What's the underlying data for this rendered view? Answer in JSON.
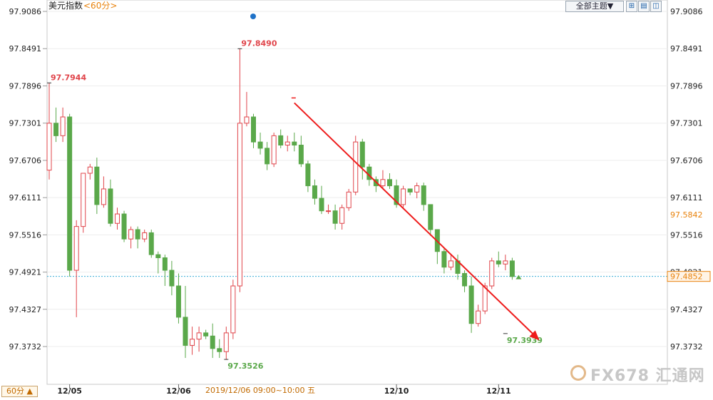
{
  "header": {
    "title": "美元指数",
    "period_tag": "<60分>",
    "theme_select": "全部主题▼"
  },
  "toolbar": {
    "icons": [
      "grid-icon",
      "chart-icon",
      "crosshair-icon",
      "toggle-icon"
    ]
  },
  "footer": {
    "period_button": "60分 ▲",
    "crosshair_label": "2019/12/06 09:00~10:00 五"
  },
  "watermark": "FX678 汇通网",
  "colors": {
    "up": "#e0444a",
    "down": "#5aa84a",
    "ref_line": "#3aaed8",
    "current_price": "#e8820c",
    "arrow": "#ee1c1c"
  },
  "chart_data": {
    "type": "candlestick",
    "title": "美元指数",
    "yaxis": {
      "ticks": [
        "97.9086",
        "97.8491",
        "97.7896",
        "97.7301",
        "97.6706",
        "97.6111",
        "97.5516",
        "97.4921",
        "97.4327",
        "97.3732"
      ],
      "range": [
        97.34,
        97.9086
      ]
    },
    "xaxis": {
      "ticks": [
        {
          "label": "12/05",
          "index": 3
        },
        {
          "label": "12/06",
          "index": 19
        },
        {
          "label": "12/10",
          "index": 51
        },
        {
          "label": "12/11",
          "index": 66
        }
      ]
    },
    "right_labels": {
      "upper": "97.5842",
      "current": "97.4852"
    },
    "reference_line": 97.4852,
    "annotations": [
      {
        "text": "97.7944",
        "index": 0,
        "value": 97.7944,
        "kind": "high"
      },
      {
        "text": "97.8490",
        "index": 28,
        "value": 97.849,
        "kind": "high"
      },
      {
        "text": "97.3526",
        "index": 26,
        "value": 97.3526,
        "kind": "low"
      },
      {
        "text": "97.3939",
        "index": 67,
        "value": 97.3939,
        "kind": "low"
      }
    ],
    "trend_arrow": {
      "from": [
        36,
        97.7624
      ],
      "to": [
        72,
        97.383
      ]
    },
    "candles": [
      [
        97.655,
        97.73,
        97.64,
        97.794
      ],
      [
        97.73,
        97.71,
        97.7,
        97.755
      ],
      [
        97.71,
        97.74,
        97.7,
        97.755
      ],
      [
        97.74,
        97.495,
        97.485,
        97.745
      ],
      [
        97.495,
        97.565,
        97.42,
        97.575
      ],
      [
        97.565,
        97.65,
        97.555,
        97.65
      ],
      [
        97.65,
        97.66,
        97.64,
        97.665
      ],
      [
        97.66,
        97.6,
        97.585,
        97.675
      ],
      [
        97.6,
        97.625,
        97.595,
        97.645
      ],
      [
        97.625,
        97.57,
        97.565,
        97.64
      ],
      [
        97.57,
        97.585,
        97.56,
        97.595
      ],
      [
        97.585,
        97.545,
        97.54,
        97.59
      ],
      [
        97.545,
        97.56,
        97.53,
        97.565
      ],
      [
        97.56,
        97.545,
        97.53,
        97.565
      ],
      [
        97.545,
        97.555,
        97.54,
        97.56
      ],
      [
        97.555,
        97.52,
        97.515,
        97.56
      ],
      [
        97.52,
        97.515,
        97.49,
        97.525
      ],
      [
        97.515,
        97.495,
        97.47,
        97.52
      ],
      [
        97.495,
        97.47,
        97.455,
        97.51
      ],
      [
        97.47,
        97.42,
        97.41,
        97.49
      ],
      [
        97.42,
        97.375,
        97.355,
        97.47
      ],
      [
        97.375,
        97.385,
        97.36,
        97.405
      ],
      [
        97.385,
        97.395,
        97.365,
        97.405
      ],
      [
        97.395,
        97.39,
        97.385,
        97.4
      ],
      [
        97.39,
        97.37,
        97.355,
        97.41
      ],
      [
        97.37,
        97.365,
        97.355,
        97.385
      ],
      [
        97.365,
        97.395,
        97.352,
        97.405
      ],
      [
        97.395,
        97.47,
        97.385,
        97.48
      ],
      [
        97.47,
        97.73,
        97.46,
        97.849
      ],
      [
        97.73,
        97.74,
        97.725,
        97.78
      ],
      [
        97.74,
        97.7,
        97.69,
        97.745
      ],
      [
        97.7,
        97.69,
        97.68,
        97.715
      ],
      [
        97.69,
        97.665,
        97.655,
        97.7
      ],
      [
        97.665,
        97.71,
        97.66,
        97.715
      ],
      [
        97.71,
        97.695,
        97.69,
        97.72
      ],
      [
        97.695,
        97.7,
        97.685,
        97.71
      ],
      [
        97.7,
        97.695,
        97.685,
        97.715
      ],
      [
        97.695,
        97.665,
        97.66,
        97.71
      ],
      [
        97.665,
        97.63,
        97.62,
        97.67
      ],
      [
        97.63,
        97.61,
        97.6,
        97.64
      ],
      [
        97.61,
        97.59,
        97.585,
        97.63
      ],
      [
        97.59,
        97.59,
        97.585,
        97.6
      ],
      [
        97.59,
        97.57,
        97.56,
        97.6
      ],
      [
        97.57,
        97.595,
        97.56,
        97.6
      ],
      [
        97.595,
        97.62,
        97.59,
        97.625
      ],
      [
        97.62,
        97.7,
        97.615,
        97.71
      ],
      [
        97.7,
        97.66,
        97.64,
        97.705
      ],
      [
        97.66,
        97.64,
        97.63,
        97.665
      ],
      [
        97.64,
        97.63,
        97.62,
        97.645
      ],
      [
        97.63,
        97.64,
        97.625,
        97.655
      ],
      [
        97.64,
        97.63,
        97.625,
        97.65
      ],
      [
        97.63,
        97.6,
        97.595,
        97.64
      ],
      [
        97.6,
        97.625,
        97.595,
        97.63
      ],
      [
        97.625,
        97.62,
        97.615,
        97.625
      ],
      [
        97.62,
        97.63,
        97.61,
        97.635
      ],
      [
        97.63,
        97.6,
        97.59,
        97.635
      ],
      [
        97.6,
        97.56,
        97.55,
        97.6
      ],
      [
        97.56,
        97.525,
        97.505,
        97.56
      ],
      [
        97.525,
        97.5,
        97.49,
        97.53
      ],
      [
        97.5,
        97.51,
        97.495,
        97.52
      ],
      [
        97.51,
        97.49,
        97.48,
        97.52
      ],
      [
        97.49,
        97.47,
        97.46,
        97.495
      ],
      [
        97.47,
        97.41,
        97.395,
        97.485
      ],
      [
        97.41,
        97.43,
        97.405,
        97.44
      ],
      [
        97.43,
        97.47,
        97.425,
        97.475
      ],
      [
        97.47,
        97.51,
        97.465,
        97.515
      ],
      [
        97.51,
        97.505,
        97.5,
        97.525
      ],
      [
        97.505,
        97.51,
        97.495,
        97.52
      ],
      [
        97.51,
        97.485,
        97.48,
        97.515
      ]
    ]
  }
}
